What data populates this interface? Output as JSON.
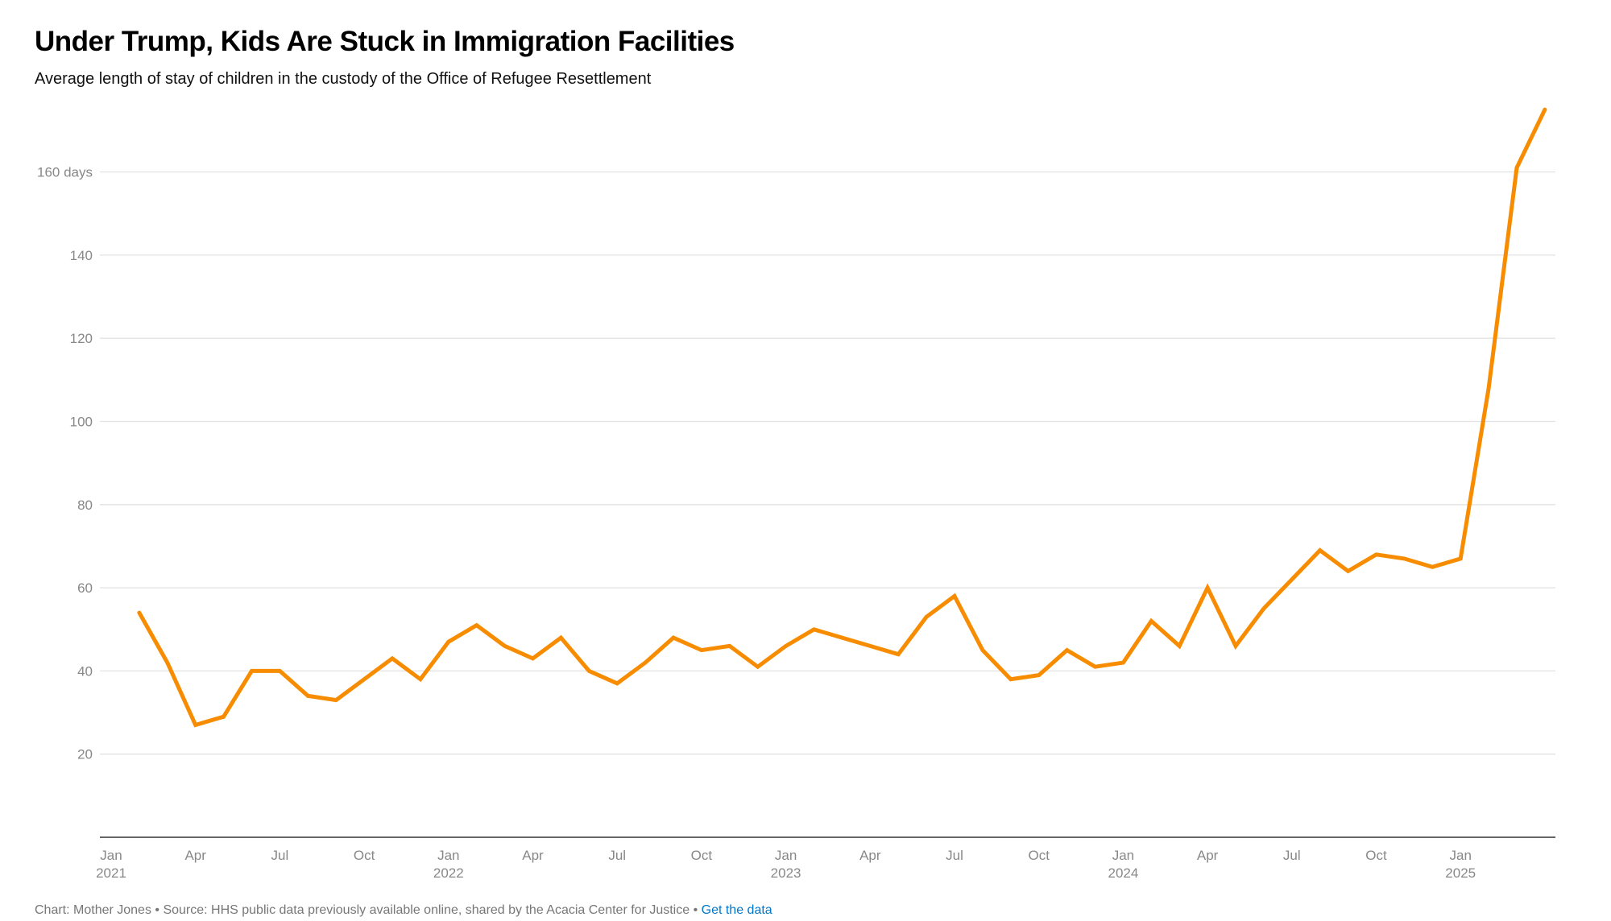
{
  "chart_data": {
    "type": "line",
    "title": "Under Trump, Kids Are Stuck in Immigration Facilities",
    "subtitle": "Average length of stay of children in the custody of the Office of Refugee Resettlement",
    "ylabel": "",
    "xlabel": "",
    "ylim": [
      0,
      175
    ],
    "y_ticks": [
      20,
      40,
      60,
      80,
      100,
      120,
      140,
      160
    ],
    "y_tick_labels": [
      "20",
      "40",
      "60",
      "80",
      "100",
      "120",
      "140",
      "160 days"
    ],
    "x_ticks": [
      {
        "month": "2021-01",
        "label": "Jan",
        "year": "2021"
      },
      {
        "month": "2021-04",
        "label": "Apr",
        "year": ""
      },
      {
        "month": "2021-07",
        "label": "Jul",
        "year": ""
      },
      {
        "month": "2021-10",
        "label": "Oct",
        "year": ""
      },
      {
        "month": "2022-01",
        "label": "Jan",
        "year": "2022"
      },
      {
        "month": "2022-04",
        "label": "Apr",
        "year": ""
      },
      {
        "month": "2022-07",
        "label": "Jul",
        "year": ""
      },
      {
        "month": "2022-10",
        "label": "Oct",
        "year": ""
      },
      {
        "month": "2023-01",
        "label": "Jan",
        "year": "2023"
      },
      {
        "month": "2023-04",
        "label": "Apr",
        "year": ""
      },
      {
        "month": "2023-07",
        "label": "Jul",
        "year": ""
      },
      {
        "month": "2023-10",
        "label": "Oct",
        "year": ""
      },
      {
        "month": "2024-01",
        "label": "Jan",
        "year": "2024"
      },
      {
        "month": "2024-04",
        "label": "Apr",
        "year": ""
      },
      {
        "month": "2024-07",
        "label": "Jul",
        "year": ""
      },
      {
        "month": "2024-10",
        "label": "Oct",
        "year": ""
      },
      {
        "month": "2025-01",
        "label": "Jan",
        "year": "2025"
      }
    ],
    "grid": true,
    "line_color": "#f78c00",
    "x": [
      "2021-02",
      "2021-03",
      "2021-04",
      "2021-05",
      "2021-06",
      "2021-07",
      "2021-08",
      "2021-09",
      "2021-10",
      "2021-11",
      "2021-12",
      "2022-01",
      "2022-02",
      "2022-03",
      "2022-04",
      "2022-05",
      "2022-06",
      "2022-07",
      "2022-08",
      "2022-09",
      "2022-10",
      "2022-11",
      "2022-12",
      "2023-01",
      "2023-02",
      "2023-03",
      "2023-04",
      "2023-05",
      "2023-06",
      "2023-07",
      "2023-08",
      "2023-09",
      "2023-10",
      "2023-11",
      "2023-12",
      "2024-01",
      "2024-02",
      "2024-03",
      "2024-04",
      "2024-05",
      "2024-06",
      "2024-07",
      "2024-08",
      "2024-09",
      "2024-10",
      "2024-11",
      "2024-12",
      "2025-01",
      "2025-02",
      "2025-03",
      "2025-04"
    ],
    "values": [
      54,
      42,
      27,
      29,
      40,
      40,
      34,
      33,
      38,
      43,
      38,
      47,
      51,
      46,
      43,
      48,
      40,
      37,
      42,
      48,
      45,
      46,
      41,
      46,
      50,
      48,
      46,
      44,
      53,
      58,
      45,
      38,
      39,
      45,
      41,
      42,
      52,
      46,
      60,
      46,
      55,
      62,
      69,
      64,
      68,
      67,
      65,
      67,
      108,
      161,
      175
    ]
  },
  "footer": {
    "credit": "Chart: Mother Jones • Source: HHS public data previously available online, shared by the Acacia Center for Justice • ",
    "link": "Get the data"
  }
}
